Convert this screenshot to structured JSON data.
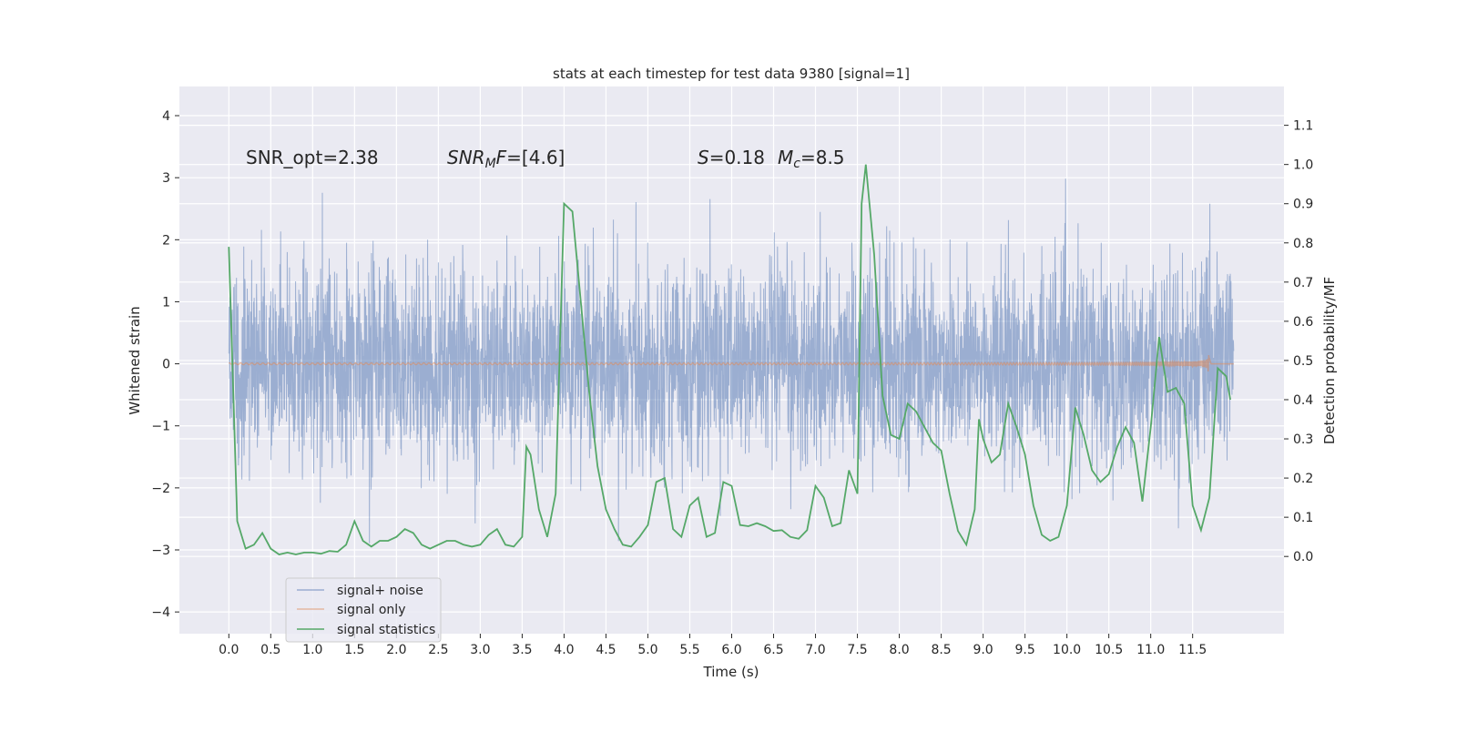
{
  "chart_data": {
    "type": "line",
    "title": "stats at each timestep for test data 9380 [signal=1]",
    "xlabel": "Time (s)",
    "ylabel": "Whitened strain",
    "ylabel_right": "Detection probability/MF",
    "xlim": [
      -0.59,
      12.59
    ],
    "ylim": [
      -4.35,
      4.47
    ],
    "ylim_right": [
      -0.197,
      1.199
    ],
    "grid": true,
    "legend_placement": "lower-left",
    "xticks": [
      "0.0",
      "0.5",
      "1.0",
      "1.5",
      "2.0",
      "2.5",
      "3.0",
      "3.5",
      "4.0",
      "4.5",
      "5.0",
      "5.5",
      "6.0",
      "6.5",
      "7.0",
      "7.5",
      "8.0",
      "8.5",
      "9.0",
      "9.5",
      "10.0",
      "10.5",
      "11.0",
      "11.5"
    ],
    "yticks": [
      "4",
      "3",
      "2",
      "1",
      "0",
      "−1",
      "−2",
      "−3",
      "−4"
    ],
    "yticks_right": [
      "1.1",
      "1.0",
      "0.9",
      "0.8",
      "0.7",
      "0.6",
      "0.5",
      "0.4",
      "0.3",
      "0.2",
      "0.1",
      "0.0"
    ],
    "annotations": {
      "snr_opt": "SNR_opt=2.38",
      "snr_mf_base": "SNR",
      "snr_mf_sub": "M",
      "snr_mf_rest": "F",
      "snr_mf_value": "=[4.6]",
      "s_symbol": "S",
      "s_value": "=0.18",
      "mc_base": "M",
      "mc_sub": "c",
      "mc_value": "=8.5"
    },
    "colors": {
      "noise": "#4C72B0",
      "signal": "#DD8452",
      "stats": "#55A868",
      "background": "#EAEAF2"
    },
    "series": [
      {
        "name": "signal+ noise",
        "axis": "left",
        "note_range": [
          -4.0,
          4.1
        ],
        "t_range": [
          0.0,
          11.99
        ]
      },
      {
        "name": "signal only",
        "axis": "left",
        "t_range": [
          0.0,
          11.99
        ],
        "peak_amplitude": 0.35,
        "peak_time": 11.7
      },
      {
        "name": "signal statistics",
        "axis": "right",
        "x": [
          0.0,
          0.1,
          0.2,
          0.3,
          0.4,
          0.5,
          0.6,
          0.7,
          0.8,
          0.9,
          1.0,
          1.1,
          1.2,
          1.3,
          1.4,
          1.5,
          1.6,
          1.7,
          1.8,
          1.9,
          2.0,
          2.1,
          2.2,
          2.3,
          2.4,
          2.5,
          2.6,
          2.7,
          2.8,
          2.9,
          3.0,
          3.1,
          3.2,
          3.3,
          3.4,
          3.5,
          3.55,
          3.6,
          3.7,
          3.8,
          3.9,
          4.0,
          4.1,
          4.2,
          4.3,
          4.4,
          4.5,
          4.6,
          4.7,
          4.8,
          4.9,
          5.0,
          5.1,
          5.2,
          5.3,
          5.4,
          5.5,
          5.6,
          5.7,
          5.8,
          5.9,
          6.0,
          6.1,
          6.2,
          6.3,
          6.4,
          6.5,
          6.6,
          6.7,
          6.8,
          6.9,
          7.0,
          7.1,
          7.2,
          7.3,
          7.4,
          7.5,
          7.55,
          7.6,
          7.7,
          7.8,
          7.9,
          8.0,
          8.1,
          8.2,
          8.3,
          8.4,
          8.5,
          8.6,
          8.7,
          8.8,
          8.9,
          8.95,
          9.0,
          9.1,
          9.2,
          9.3,
          9.4,
          9.5,
          9.6,
          9.7,
          9.8,
          9.9,
          10.0,
          10.1,
          10.2,
          10.3,
          10.4,
          10.5,
          10.6,
          10.7,
          10.8,
          10.9,
          11.0,
          11.1,
          11.2,
          11.3,
          11.4,
          11.5,
          11.6,
          11.7,
          11.8,
          11.9,
          11.95
        ],
        "y": [
          0.79,
          0.09,
          0.02,
          0.03,
          0.06,
          0.02,
          0.005,
          0.01,
          0.005,
          0.01,
          0.01,
          0.007,
          0.014,
          0.012,
          0.03,
          0.09,
          0.04,
          0.025,
          0.04,
          0.04,
          0.05,
          0.07,
          0.06,
          0.03,
          0.02,
          0.03,
          0.04,
          0.04,
          0.03,
          0.025,
          0.03,
          0.055,
          0.07,
          0.03,
          0.025,
          0.05,
          0.28,
          0.26,
          0.12,
          0.05,
          0.16,
          0.9,
          0.88,
          0.65,
          0.42,
          0.23,
          0.12,
          0.07,
          0.03,
          0.025,
          0.05,
          0.08,
          0.19,
          0.2,
          0.07,
          0.05,
          0.13,
          0.15,
          0.05,
          0.06,
          0.19,
          0.18,
          0.08,
          0.077,
          0.085,
          0.077,
          0.065,
          0.067,
          0.05,
          0.045,
          0.067,
          0.18,
          0.15,
          0.077,
          0.085,
          0.22,
          0.16,
          0.9,
          1.0,
          0.77,
          0.41,
          0.31,
          0.3,
          0.39,
          0.37,
          0.33,
          0.29,
          0.27,
          0.16,
          0.065,
          0.03,
          0.12,
          0.35,
          0.3,
          0.24,
          0.26,
          0.39,
          0.33,
          0.26,
          0.13,
          0.055,
          0.04,
          0.05,
          0.13,
          0.38,
          0.31,
          0.22,
          0.19,
          0.21,
          0.28,
          0.33,
          0.29,
          0.14,
          0.33,
          0.56,
          0.42,
          0.43,
          0.39,
          0.13,
          0.067,
          0.15,
          0.48,
          0.46,
          0.4
        ]
      }
    ]
  }
}
